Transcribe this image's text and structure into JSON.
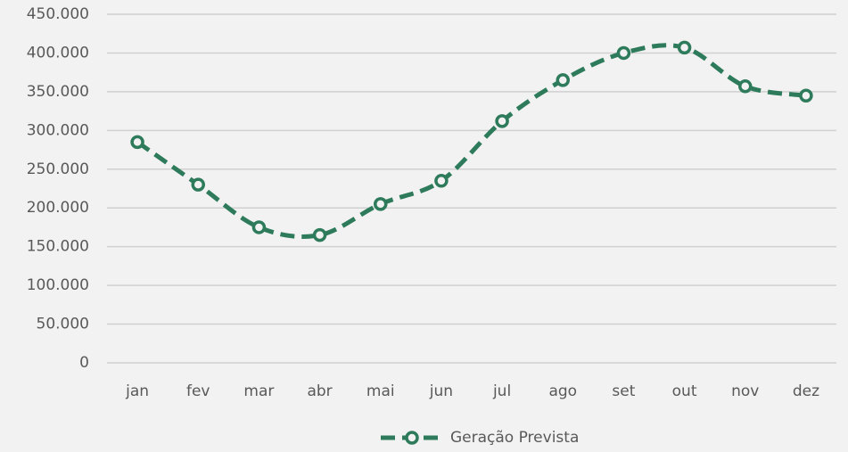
{
  "chart_data": {
    "type": "line",
    "categories": [
      "jan",
      "fev",
      "mar",
      "abr",
      "mai",
      "jun",
      "jul",
      "ago",
      "set",
      "out",
      "nov",
      "dez"
    ],
    "series": [
      {
        "name": "Geração Prevista",
        "color": "#2e7b5c",
        "values": [
          285000,
          230000,
          175000,
          165000,
          205000,
          235000,
          312000,
          365000,
          400000,
          407000,
          357000,
          345000
        ]
      }
    ],
    "ylim": [
      0,
      450000
    ],
    "yticks": [
      0,
      {
        "value": 50000,
        "label": "50.000"
      },
      {
        "value": 100000,
        "label": "100.000"
      },
      {
        "value": 150000,
        "label": "150.000"
      },
      {
        "value": 200000,
        "label": "200.000"
      },
      {
        "value": 250000,
        "label": "250.000"
      },
      {
        "value": 300000,
        "label": "300.000"
      },
      {
        "value": 350000,
        "label": "350.000"
      },
      {
        "value": 400000,
        "label": "400.000"
      },
      {
        "value": 450000,
        "label": "450.000"
      }
    ],
    "grid": true,
    "legend": "bottom",
    "smooth": true,
    "dashed": true
  }
}
